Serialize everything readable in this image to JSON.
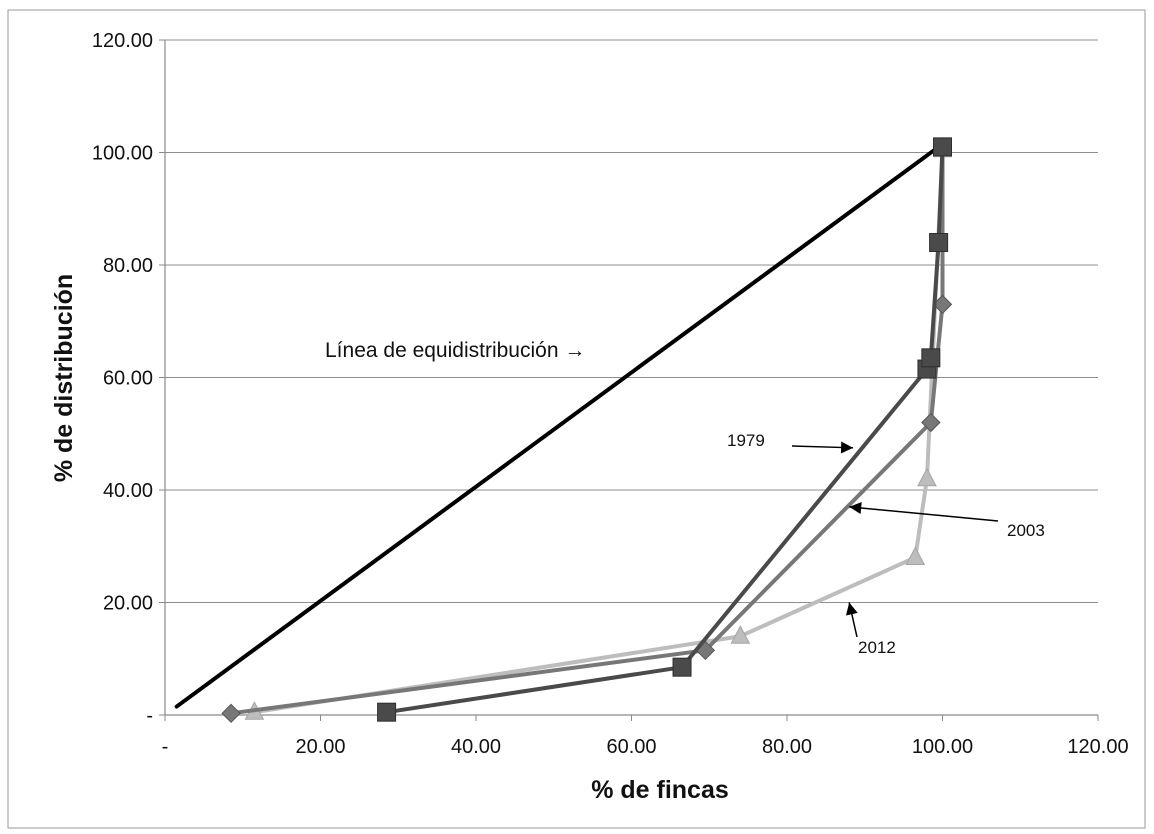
{
  "chart_data": {
    "type": "line",
    "xlabel": "% de fincas",
    "ylabel": "% de distribución",
    "xlim": [
      0,
      120
    ],
    "ylim": [
      0,
      120
    ],
    "x_ticks": [
      "-",
      "20.00",
      "40.00",
      "60.00",
      "80.00",
      "100.00",
      "120.00"
    ],
    "y_ticks": [
      "-",
      "20.00",
      "40.00",
      "60.00",
      "80.00",
      "100.00",
      "120.00"
    ],
    "grid": "horizontal",
    "legend": "none",
    "equidistribution_line": {
      "label": "Línea de equidistribución →",
      "x": [
        1.5,
        100
      ],
      "y": [
        1.5,
        101.5
      ],
      "color": "#000000"
    },
    "series": [
      {
        "name": "1979",
        "marker": "square",
        "color": "#4a4a4a",
        "x": [
          28.5,
          66.5,
          98.0,
          98.5,
          99.5,
          100.0
        ],
        "y": [
          0.5,
          8.5,
          61.5,
          63.5,
          84.0,
          101.0
        ]
      },
      {
        "name": "2003",
        "marker": "diamond",
        "color": "#777777",
        "x": [
          8.5,
          69.5,
          98.5,
          100.0,
          100.0
        ],
        "y": [
          0.3,
          11.5,
          52.0,
          73.0,
          101.0
        ]
      },
      {
        "name": "2012",
        "marker": "triangle",
        "color": "#bdbdbd",
        "x": [
          11.5,
          74.0,
          96.5,
          98.0,
          100.0
        ],
        "y": [
          0.5,
          14.0,
          28.0,
          42.0,
          100.5
        ]
      }
    ],
    "annotations": [
      {
        "text": "1979",
        "target": [
          88.5,
          47.5
        ]
      },
      {
        "text": "2003",
        "target": [
          88.0,
          37.0
        ]
      },
      {
        "text": "2012",
        "target": [
          88.0,
          20.0
        ]
      }
    ]
  }
}
